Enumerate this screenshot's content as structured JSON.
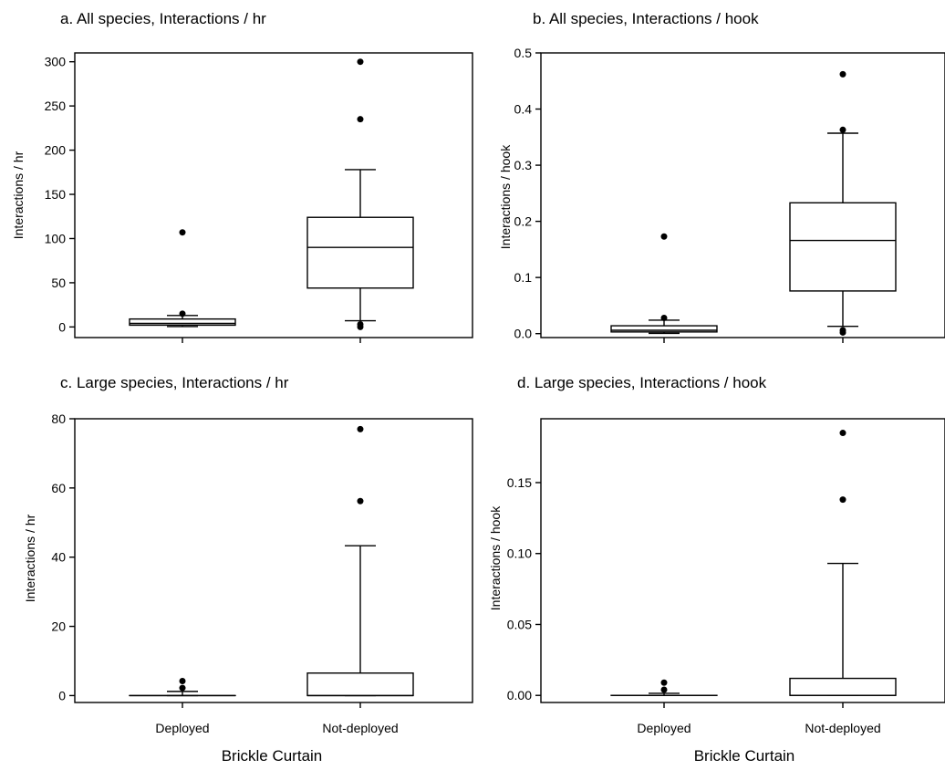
{
  "figure": {
    "bottom_labels": [
      "Brickle Curtain",
      "Brickle Curtain"
    ]
  },
  "chart_data": [
    {
      "type": "box",
      "title": "a. All species, Interactions / hr",
      "xlabel": "",
      "ylabel": "Interactions / hr",
      "categories": [
        "",
        ""
      ],
      "ylim": [
        -12,
        310
      ],
      "yticks": [
        0,
        50,
        100,
        150,
        200,
        250,
        300
      ],
      "tick_labels": [
        "0",
        "50",
        "100",
        "150",
        "200",
        "250",
        "300"
      ],
      "boxes": [
        {
          "group": "Deployed",
          "whisker_low": 0.5,
          "q1": 2,
          "median": 4,
          "q3": 9,
          "whisker_high": 13,
          "outliers": [
            15,
            107
          ]
        },
        {
          "group": "Not-deployed",
          "whisker_low": 7,
          "q1": 44,
          "median": 90,
          "q3": 124,
          "whisker_high": 178,
          "outliers": [
            0,
            3,
            235,
            300
          ]
        }
      ]
    },
    {
      "type": "box",
      "title": "b. All species, Interactions / hook",
      "xlabel": "",
      "ylabel": "Interactions / hook",
      "categories": [
        "",
        ""
      ],
      "ylim": [
        -0.007,
        0.5
      ],
      "yticks": [
        0.0,
        0.1,
        0.2,
        0.3,
        0.4,
        0.5
      ],
      "tick_labels": [
        "0.0",
        "0.1",
        "0.2",
        "0.3",
        "0.4",
        "0.5"
      ],
      "boxes": [
        {
          "group": "Deployed",
          "whisker_low": 0.0005,
          "q1": 0.003,
          "median": 0.006,
          "q3": 0.014,
          "whisker_high": 0.024,
          "outliers": [
            0.028,
            0.173
          ]
        },
        {
          "group": "Not-deployed",
          "whisker_low": 0.013,
          "q1": 0.076,
          "median": 0.166,
          "q3": 0.233,
          "whisker_high": 0.357,
          "outliers": [
            0.002,
            0.006,
            0.363,
            0.462
          ]
        }
      ]
    },
    {
      "type": "box",
      "title": "c. Large species, Interactions / hr",
      "xlabel": "",
      "ylabel": "Interactions / hr",
      "categories": [
        "Deployed",
        "Not-deployed"
      ],
      "ylim": [
        -2,
        80
      ],
      "yticks": [
        0,
        20,
        40,
        60,
        80
      ],
      "tick_labels": [
        "0",
        "20",
        "40",
        "60",
        "80"
      ],
      "boxes": [
        {
          "group": "Deployed",
          "whisker_low": 0,
          "q1": 0,
          "median": 0,
          "q3": 0,
          "whisker_high": 1.2,
          "outliers": [
            2.2,
            4.2
          ]
        },
        {
          "group": "Not-deployed",
          "whisker_low": 0,
          "q1": 0,
          "median": 0,
          "q3": 6.5,
          "whisker_high": 43.3,
          "outliers": [
            56.2,
            77
          ]
        }
      ]
    },
    {
      "type": "box",
      "title": "d. Large species, Interactions / hook",
      "xlabel": "",
      "ylabel": "Interactions / hook",
      "categories": [
        "Deployed",
        "Not-deployed"
      ],
      "ylim": [
        -0.005,
        0.195
      ],
      "yticks": [
        0.0,
        0.05,
        0.1,
        0.15
      ],
      "tick_labels": [
        "0.00",
        "0.05",
        "0.10",
        "0.15"
      ],
      "boxes": [
        {
          "group": "Deployed",
          "whisker_low": 0,
          "q1": 0,
          "median": 0,
          "q3": 0,
          "whisker_high": 0.0015,
          "outliers": [
            0.004,
            0.009
          ]
        },
        {
          "group": "Not-deployed",
          "whisker_low": 0,
          "q1": 0,
          "median": 0,
          "q3": 0.012,
          "whisker_high": 0.093,
          "outliers": [
            0.138,
            0.185
          ]
        }
      ]
    }
  ]
}
